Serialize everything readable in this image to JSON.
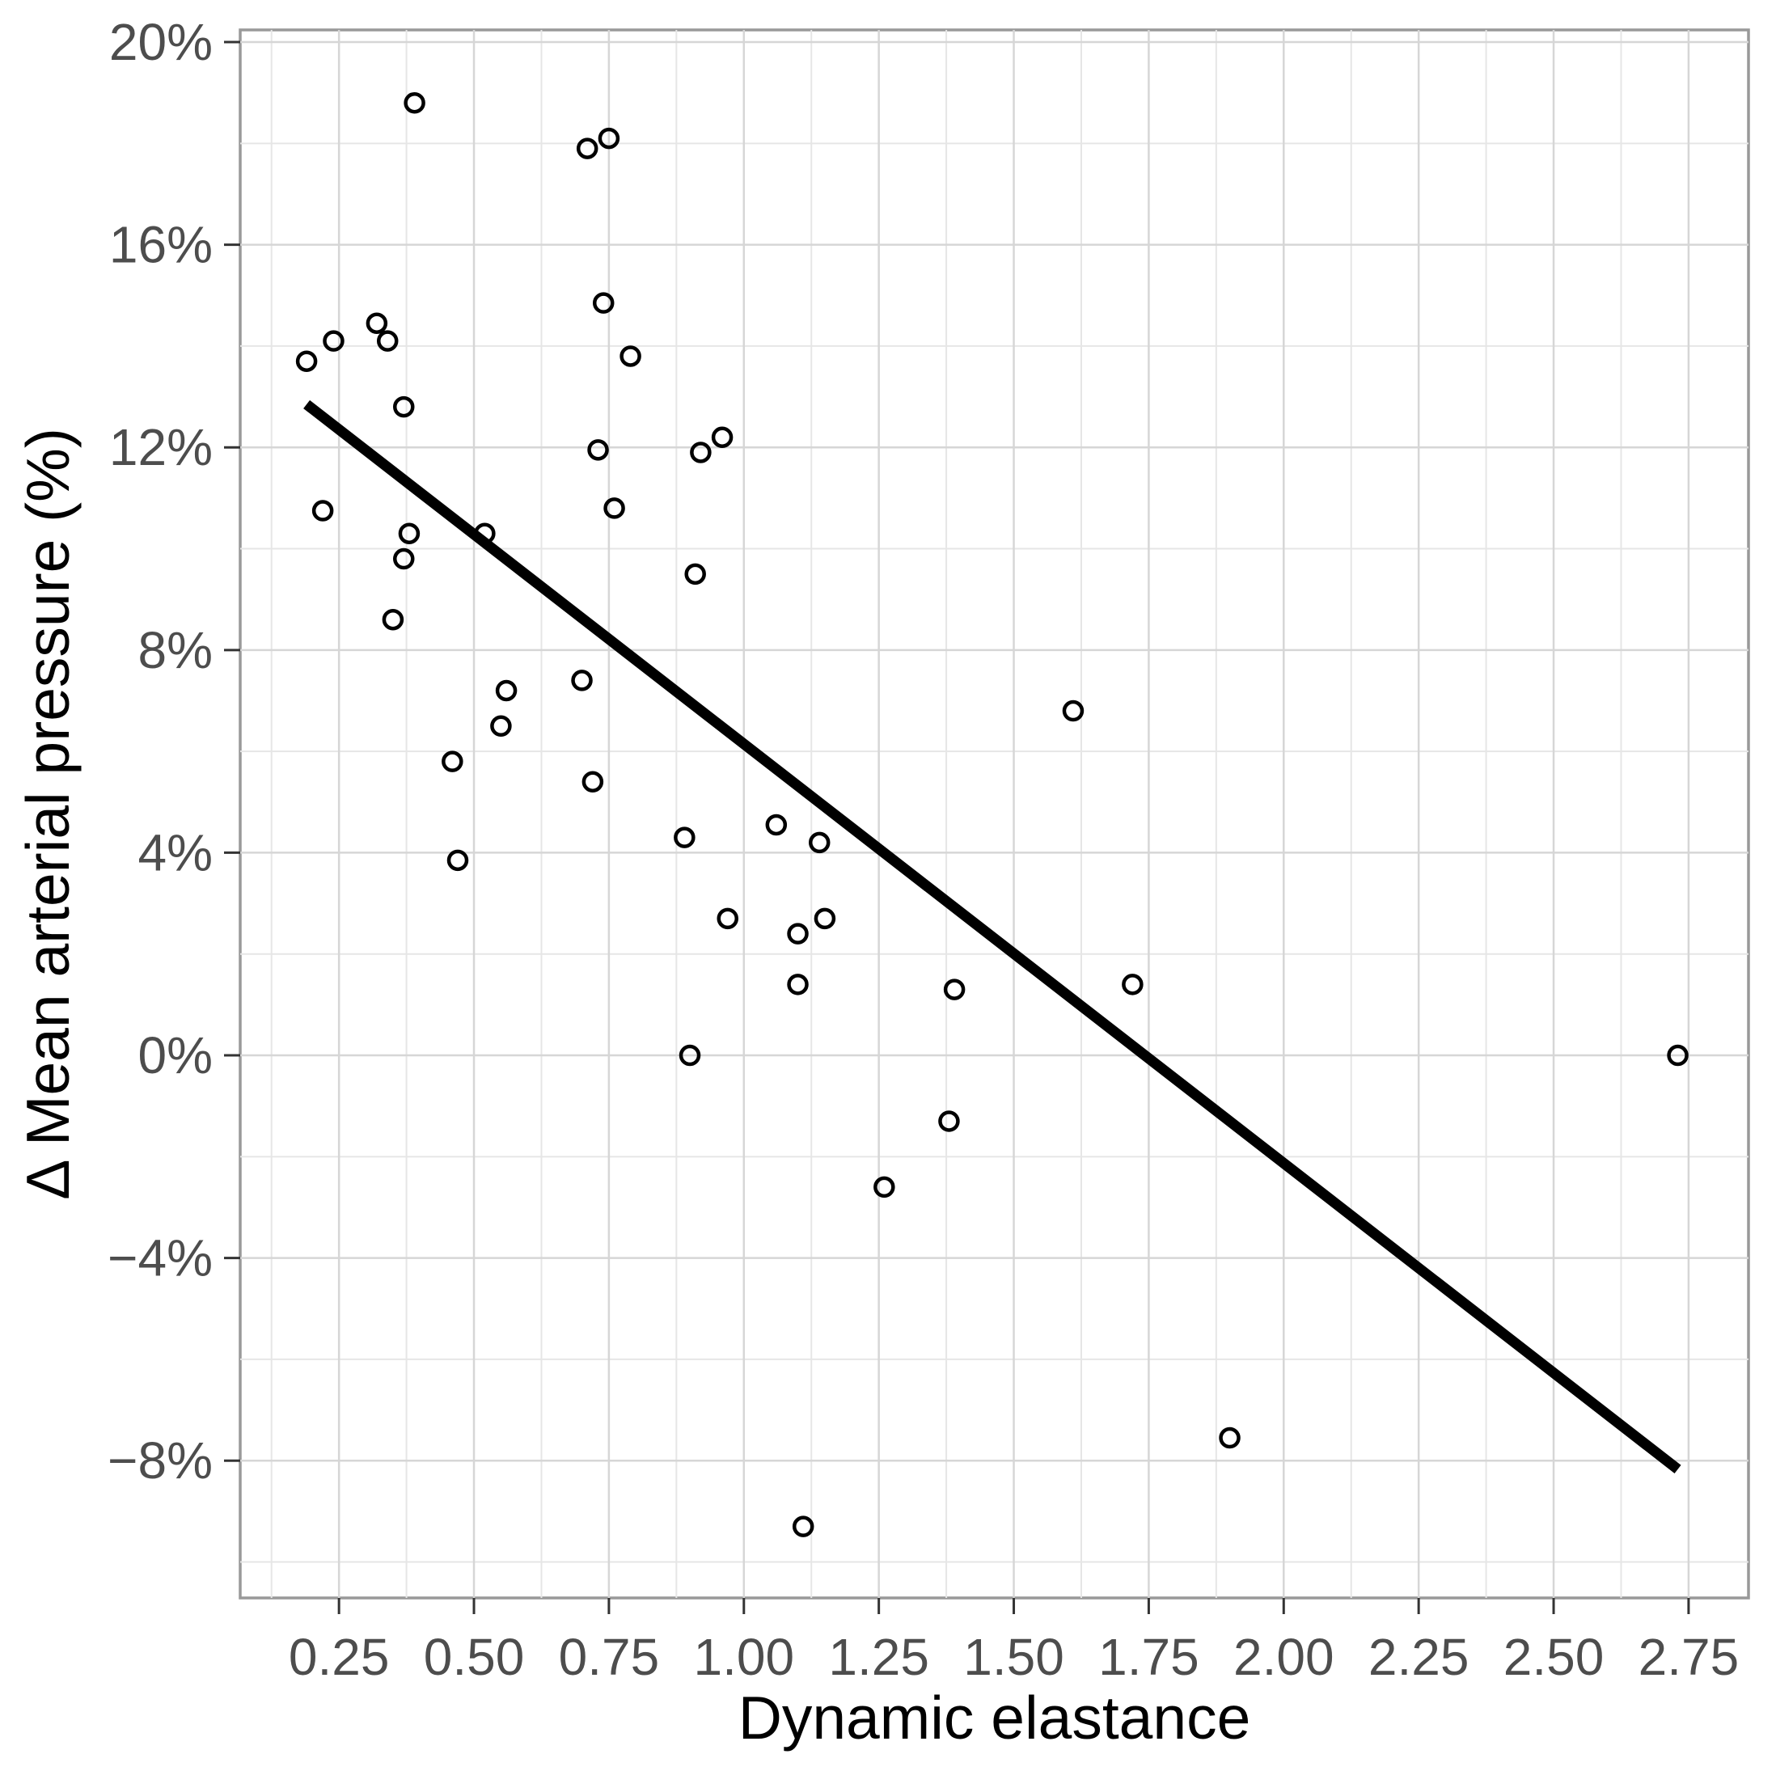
{
  "figure": {
    "background_color": "#ffffff",
    "panel_border_color": "#999999",
    "grid_major_color": "#d6d6d6",
    "grid_minor_color": "#e6e6e6",
    "tick_mark_color": "#333333",
    "axis_text_color": "#4d4d4d",
    "point_color": "#000000",
    "trend_line_color": "#000000"
  },
  "chart_data": {
    "type": "scatter",
    "title": "",
    "xlabel": "Dynamic elastance",
    "ylabel": "Δ Mean arterial pressure (%)",
    "xlim": [
      0.067,
      2.861
    ],
    "ylim": [
      -10.71,
      20.24
    ],
    "grid": "on",
    "legend": "none",
    "x_major_ticks": [
      0.25,
      0.5,
      0.75,
      1.0,
      1.25,
      1.5,
      1.75,
      2.0,
      2.25,
      2.5,
      2.75
    ],
    "x_tick_labels": [
      "0.25",
      "0.50",
      "0.75",
      "1.00",
      "1.25",
      "1.50",
      "1.75",
      "2.00",
      "2.25",
      "2.50",
      "2.75"
    ],
    "x_minor_ticks": [
      0.125,
      0.375,
      0.625,
      0.875,
      1.125,
      1.375,
      1.625,
      1.875,
      2.125,
      2.375,
      2.625
    ],
    "y_major_ticks": [
      20,
      16,
      12,
      8,
      4,
      0,
      -4,
      -8
    ],
    "y_tick_labels": [
      "20%",
      "16%",
      "12%",
      "8%",
      "4%",
      "0%",
      "−4%",
      "−8%"
    ],
    "y_minor_ticks": [
      18,
      14,
      10,
      6,
      2,
      -2,
      -6,
      -10
    ],
    "points": [
      [
        0.19,
        13.7
      ],
      [
        0.24,
        14.1
      ],
      [
        0.32,
        14.45
      ],
      [
        0.34,
        14.1
      ],
      [
        0.37,
        12.8
      ],
      [
        0.22,
        10.75
      ],
      [
        0.38,
        10.3
      ],
      [
        0.52,
        10.3
      ],
      [
        0.37,
        9.8
      ],
      [
        0.35,
        8.6
      ],
      [
        0.39,
        18.8
      ],
      [
        0.71,
        17.9
      ],
      [
        0.75,
        18.1
      ],
      [
        0.74,
        14.85
      ],
      [
        0.79,
        13.8
      ],
      [
        0.73,
        11.95
      ],
      [
        0.76,
        10.8
      ],
      [
        0.92,
        11.9
      ],
      [
        0.96,
        12.2
      ],
      [
        0.91,
        9.5
      ],
      [
        0.7,
        7.4
      ],
      [
        0.56,
        7.2
      ],
      [
        0.55,
        6.5
      ],
      [
        0.46,
        5.8
      ],
      [
        0.72,
        5.4
      ],
      [
        0.47,
        3.85
      ],
      [
        0.89,
        4.3
      ],
      [
        1.06,
        4.55
      ],
      [
        1.14,
        4.2
      ],
      [
        0.97,
        2.7
      ],
      [
        1.15,
        2.7
      ],
      [
        1.1,
        2.4
      ],
      [
        1.1,
        1.4
      ],
      [
        0.9,
        0.0
      ],
      [
        1.39,
        1.3
      ],
      [
        1.72,
        1.4
      ],
      [
        1.61,
        6.8
      ],
      [
        1.38,
        -1.3
      ],
      [
        1.26,
        -2.6
      ],
      [
        1.9,
        -7.55
      ],
      [
        2.73,
        0.0
      ],
      [
        1.11,
        -9.3
      ]
    ],
    "point_style": {
      "marker": "open-circle",
      "radius": 11,
      "stroke_width": 4.5
    },
    "trend_line": {
      "x1": 0.19,
      "y1": 12.85,
      "x2": 2.73,
      "y2": -8.17,
      "width": 13
    }
  }
}
